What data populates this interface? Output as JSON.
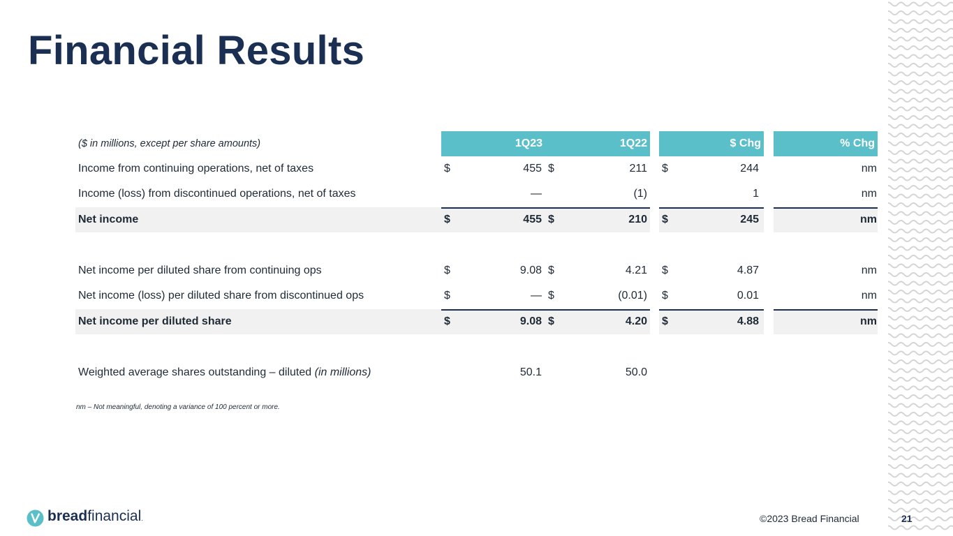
{
  "title": "Financial Results",
  "table": {
    "units_note": "($ in millions, except per share amounts)",
    "headers": [
      "1Q23",
      "1Q22",
      "$ Chg",
      "% Chg"
    ],
    "rows": [
      {
        "label": "Income from continuing operations, net of taxes",
        "d1": "$",
        "v1": "455",
        "d2": "$",
        "v2": "211",
        "d3": "$",
        "v3": "244",
        "pct": "nm"
      },
      {
        "label": "Income (loss) from discontinued operations, net of taxes",
        "d1": "",
        "v1": "—",
        "d2": "",
        "v2": "(1)",
        "d3": "",
        "v3": "1",
        "pct": "nm"
      },
      {
        "label": "Net income",
        "d1": "$",
        "v1": "455",
        "d2": "$",
        "v2": "210",
        "d3": "$",
        "v3": "245",
        "pct": "nm"
      },
      {
        "label": "Net income per diluted share from continuing ops",
        "d1": "$",
        "v1": "9.08",
        "d2": "$",
        "v2": "4.21",
        "d3": "$",
        "v3": "4.87",
        "pct": "nm"
      },
      {
        "label": "Net income (loss) per diluted share from discontinued ops",
        "d1": "$",
        "v1": "—",
        "d2": "$",
        "v2": "(0.01)",
        "d3": "$",
        "v3": "0.01",
        "pct": "nm"
      },
      {
        "label": "Net income per diluted share",
        "d1": "$",
        "v1": "9.08",
        "d2": "$",
        "v2": "4.20",
        "d3": "$",
        "v3": "4.88",
        "pct": "nm"
      },
      {
        "label": "Weighted average shares outstanding – diluted",
        "label_suffix": "(in millions)",
        "v1": "50.1",
        "v2": "50.0"
      }
    ]
  },
  "footnote": "nm – Not meaningful, denoting a variance of 100 percent or more.",
  "footer": {
    "logo_bold": "bread",
    "logo_light": "financial",
    "logo_tm": ".",
    "copyright": "©2023 Bread Financial",
    "page_number": "21"
  },
  "colors": {
    "header_fill": "#5bbfca",
    "title": "#1b2f52",
    "rule": "#1b2f52",
    "shade": "#f1f1f1"
  },
  "icons": [
    "bread-financial-logo-icon",
    "wave-pattern"
  ]
}
